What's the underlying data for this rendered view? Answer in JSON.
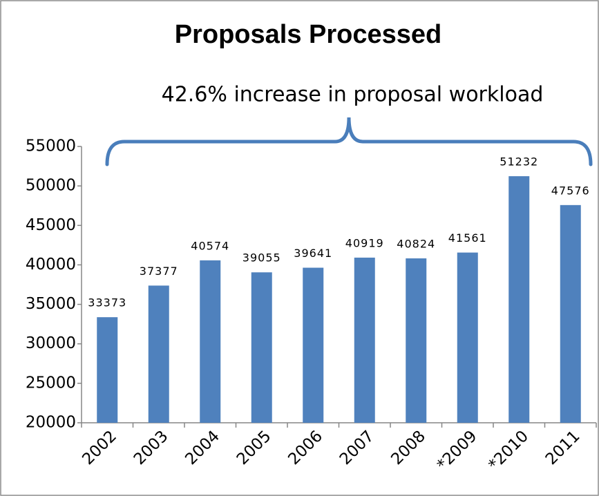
{
  "chart_data": {
    "type": "bar",
    "title": "Proposals Processed",
    "annotation": "42.6% increase in proposal workload",
    "categories": [
      "2002",
      "2003",
      "2004",
      "2005",
      "2006",
      "2007",
      "2008",
      "*2009",
      "*2010",
      "2011"
    ],
    "values": [
      33373,
      37377,
      40574,
      39055,
      39641,
      40919,
      40824,
      41561,
      51232,
      47576
    ],
    "color": "#4f81bd",
    "ylim": [
      20000,
      55000
    ],
    "yticks": [
      20000,
      25000,
      30000,
      35000,
      40000,
      45000,
      50000,
      55000
    ],
    "grid": false
  }
}
